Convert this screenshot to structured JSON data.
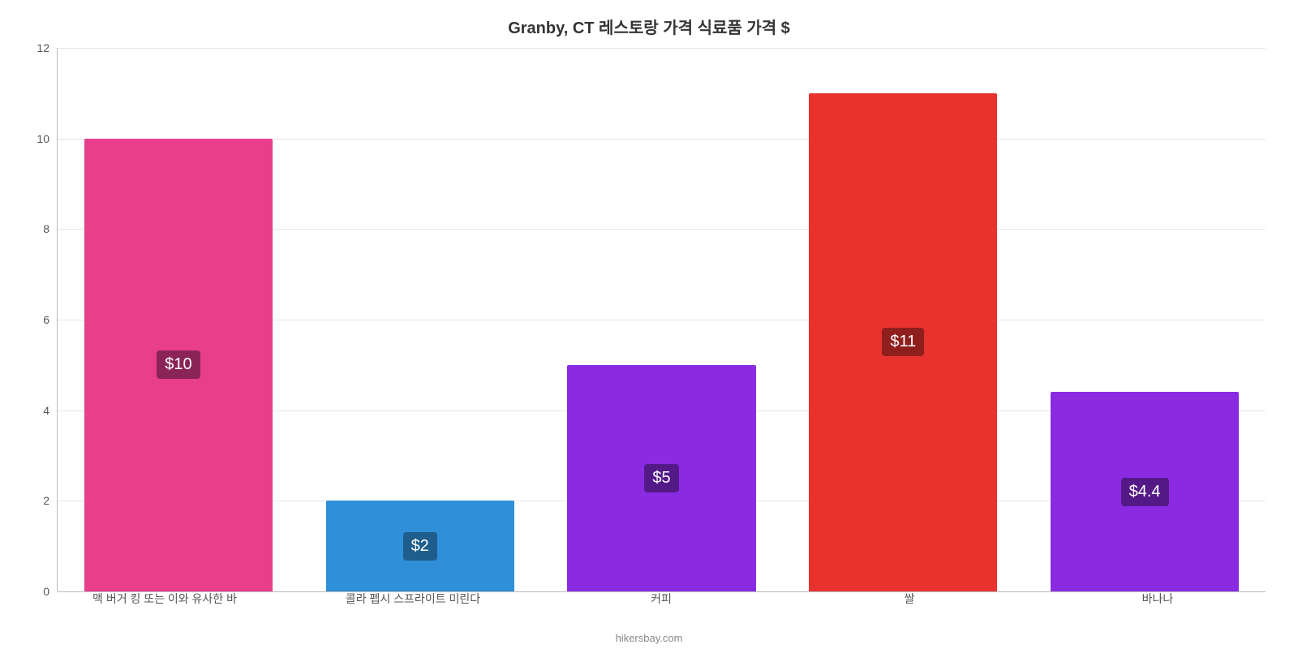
{
  "chart": {
    "type": "bar",
    "title": "Granby, CT 레스토랑 가격 식료품 가격 $",
    "title_fontsize": 20,
    "title_color": "#343434",
    "background_color": "#ffffff",
    "axis_color": "#bbbbbb",
    "grid_color": "#e6e6e6",
    "tick_label_color": "#555555",
    "tick_label_fontsize": 14,
    "ylim_min": 0,
    "ylim_max": 12,
    "ytick_step": 2,
    "yticks": [
      {
        "value": 0,
        "label": "0"
      },
      {
        "value": 2,
        "label": "2"
      },
      {
        "value": 4,
        "label": "4"
      },
      {
        "value": 6,
        "label": "6"
      },
      {
        "value": 8,
        "label": "8"
      },
      {
        "value": 10,
        "label": "10"
      },
      {
        "value": 12,
        "label": "12"
      }
    ],
    "bar_width_pct": 78,
    "value_badge_fontsize": 20,
    "value_badge_text_color": "#ffffff",
    "attribution": "hikersbay.com",
    "attribution_color": "#888888",
    "bars": [
      {
        "category": "맥 버거 킹 또는 이와 유사한 바",
        "value": 10,
        "value_label": "$10",
        "bar_color": "#e83e8c",
        "badge_bg": "#8a2457"
      },
      {
        "category": "콜라 펩시 스프라이트 미린다",
        "value": 2,
        "value_label": "$2",
        "bar_color": "#2f8fd8",
        "badge_bg": "#1f5d8c"
      },
      {
        "category": "커피",
        "value": 5,
        "value_label": "$5",
        "bar_color": "#8a2be2",
        "badge_bg": "#531a87"
      },
      {
        "category": "쌀",
        "value": 11,
        "value_label": "$11",
        "bar_color": "#e9322e",
        "badge_bg": "#8f1f1d"
      },
      {
        "category": "바나나",
        "value": 4.4,
        "value_label": "$4.4",
        "bar_color": "#8a2be2",
        "badge_bg": "#531a87"
      }
    ]
  }
}
